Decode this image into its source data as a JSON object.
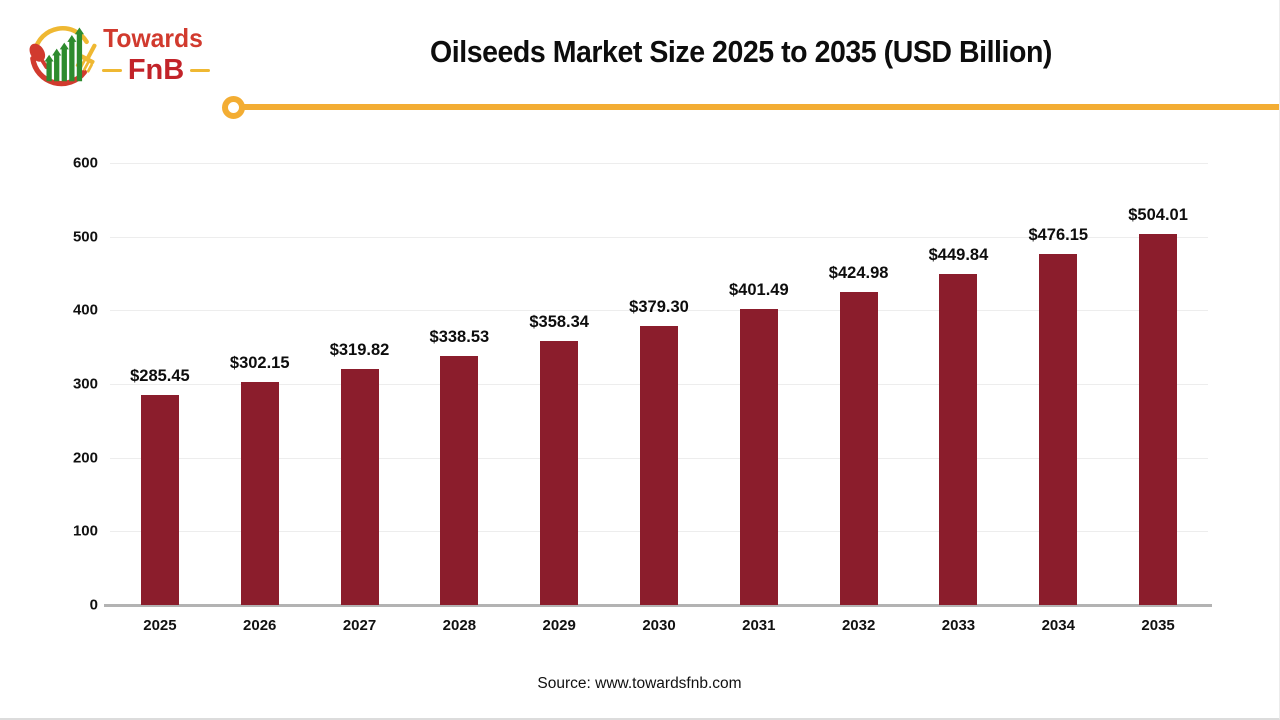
{
  "logo": {
    "brand_line1": "Towards",
    "brand_line2": "FnB"
  },
  "header": {
    "title": "Oilseeds Market Size 2025 to 2035 (USD Billion)"
  },
  "footer": {
    "source": "Source: www.towardsfnb.com"
  },
  "colors": {
    "bar": "#8b1d2c",
    "accent_gold": "#f3ad33",
    "brand_red": "#c22329",
    "brand_red_light": "#d13a2e",
    "brand_green": "#2e8b2e",
    "gridline": "#ededed",
    "axis_line": "#b3b3b3",
    "text": "#0d0d0d"
  },
  "chart_data": {
    "type": "bar",
    "title": "Oilseeds Market Size 2025 to 2035 (USD Billion)",
    "unit": "USD Billion",
    "categories": [
      "2025",
      "2026",
      "2027",
      "2028",
      "2029",
      "2030",
      "2031",
      "2032",
      "2033",
      "2034",
      "2035"
    ],
    "values": [
      285.45,
      302.15,
      319.82,
      338.53,
      358.34,
      379.3,
      401.49,
      424.98,
      449.84,
      476.15,
      504.01
    ],
    "value_labels": [
      "$285.45",
      "$302.15",
      "$319.82",
      "$338.53",
      "$358.34",
      "$379.30",
      "$401.49",
      "$424.98",
      "$449.84",
      "$476.15",
      "$504.01"
    ],
    "xlabel": "",
    "ylabel": "",
    "ylim": [
      0,
      600
    ],
    "yticks": [
      0,
      100,
      200,
      300,
      400,
      500,
      600
    ],
    "grid": true,
    "legend": false,
    "bar_color": "#8b1d2c"
  }
}
